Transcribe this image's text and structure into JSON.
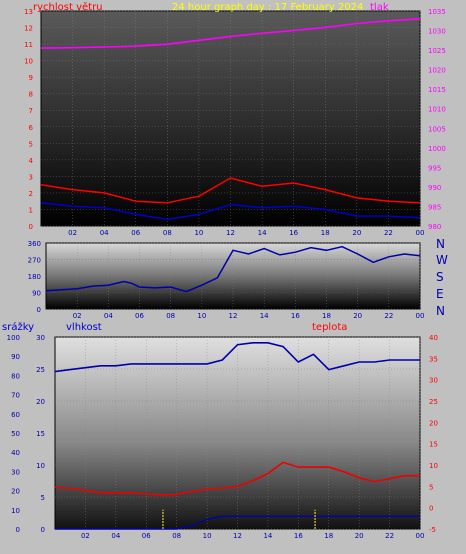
{
  "chart_data": [
    {
      "type": "line",
      "title": "24 hour graph day : 17 February 2024",
      "left_axis_label": "rychlost větru",
      "right_axis_label": "tlak",
      "left_ylim": [
        0,
        13
      ],
      "left_ticks": [
        "0",
        "1",
        "2",
        "3",
        "4",
        "5",
        "6",
        "7",
        "8",
        "9",
        "10",
        "11",
        "12",
        "13"
      ],
      "right_ylim": [
        980,
        1035
      ],
      "right_ticks": [
        "980",
        "985",
        "990",
        "995",
        "1000",
        "1005",
        "1010",
        "1015",
        "1020",
        "1025",
        "1030",
        "1035"
      ],
      "x_ticks": [
        "02",
        "04",
        "06",
        "08",
        "10",
        "12",
        "14",
        "16",
        "18",
        "20",
        "22",
        "00"
      ],
      "colors": {
        "title": "#ffff00",
        "left_label": "#ff0000",
        "right_label": "#ff00ff",
        "pressure": "#ff00ff",
        "gust": "#ff0000",
        "wind": "#0000cc"
      },
      "series": [
        {
          "role": "pressure",
          "x": [
            0,
            2,
            4,
            6,
            8,
            10,
            12,
            14,
            16,
            18,
            20,
            22,
            24
          ],
          "values": [
            1025.5,
            1025.6,
            1025.8,
            1026,
            1026.5,
            1027.5,
            1028.5,
            1029.3,
            1030,
            1030.8,
            1031.8,
            1032.5,
            1033
          ]
        },
        {
          "role": "gust",
          "x": [
            0,
            2,
            4,
            6,
            8,
            10,
            12,
            14,
            16,
            18,
            20,
            22,
            24
          ],
          "values": [
            2.5,
            2.2,
            2,
            1.5,
            1.4,
            1.8,
            2.9,
            2.4,
            2.6,
            2.2,
            1.7,
            1.5,
            1.4
          ]
        },
        {
          "role": "wind",
          "x": [
            0,
            2,
            4,
            6,
            8,
            10,
            12,
            14,
            16,
            18,
            20,
            22,
            24
          ],
          "values": [
            1.4,
            1.2,
            1.1,
            0.7,
            0.4,
            0.7,
            1.3,
            1.1,
            1.2,
            1.0,
            0.6,
            0.6,
            0.5
          ]
        }
      ]
    },
    {
      "type": "line",
      "right_letters": [
        "N",
        "W",
        "S",
        "E",
        "N"
      ],
      "left_ticks": [
        "0",
        "90",
        "180",
        "270",
        "360"
      ],
      "ylim": [
        0,
        360
      ],
      "x_ticks": [
        "02",
        "04",
        "06",
        "08",
        "10",
        "12",
        "14",
        "16",
        "18",
        "20",
        "22",
        "00"
      ],
      "colors": {
        "direction": "#0000aa"
      },
      "series": [
        {
          "role": "direction",
          "x": [
            0,
            1,
            2,
            3,
            4,
            5,
            5.5,
            6,
            7,
            8,
            9,
            10,
            11,
            12,
            13,
            14,
            15,
            16,
            17,
            18,
            19,
            20,
            21,
            22,
            23,
            24
          ],
          "values": [
            100,
            105,
            110,
            125,
            130,
            150,
            140,
            120,
            115,
            120,
            95,
            130,
            170,
            320,
            300,
            330,
            295,
            310,
            335,
            320,
            340,
            300,
            255,
            285,
            300,
            290
          ]
        }
      ]
    },
    {
      "type": "line",
      "labels": {
        "rain": "srážky",
        "humidity": "vlhkost",
        "temperature": "teplota"
      },
      "left_outer_ticks": [
        "0",
        "10",
        "20",
        "30",
        "40",
        "50",
        "60",
        "70",
        "80",
        "90",
        "100"
      ],
      "left_inner_ticks": [
        "0",
        "5",
        "10",
        "15",
        "20",
        "25",
        "30"
      ],
      "right_ticks": [
        "-5",
        "0",
        "5",
        "10",
        "15",
        "20",
        "25",
        "30",
        "35",
        "40"
      ],
      "humidity_ylim": [
        0,
        100
      ],
      "temperature_ylim": [
        -5,
        40
      ],
      "rain_ylim": [
        0,
        30
      ],
      "x_ticks": [
        "02",
        "04",
        "06",
        "08",
        "10",
        "12",
        "14",
        "16",
        "18",
        "20",
        "22",
        "00"
      ],
      "colors": {
        "rain_label": "#0000cc",
        "humidity_label": "#0000cc",
        "temperature_label": "#ff0000",
        "humidity": "#0000aa",
        "temperature": "#ee0000",
        "rain": "#0000aa",
        "rain_marker": "#ffff00"
      },
      "series": [
        {
          "role": "humidity",
          "x": [
            0,
            1,
            2,
            3,
            4,
            5,
            6,
            7,
            8,
            9,
            10,
            11,
            12,
            13,
            14,
            15,
            16,
            17,
            18,
            19,
            20,
            21,
            22,
            23,
            24
          ],
          "values": [
            82,
            83,
            84,
            85,
            85,
            86,
            86,
            86,
            86,
            86,
            86,
            88,
            96,
            97,
            97,
            95,
            87,
            91,
            83,
            85,
            87,
            87,
            88,
            88,
            88
          ]
        },
        {
          "role": "temperature",
          "x": [
            0,
            1,
            2,
            3,
            4,
            5,
            6,
            7,
            8,
            9,
            10,
            11,
            12,
            13,
            14,
            15,
            16,
            17,
            18,
            19,
            20,
            21,
            22,
            23,
            24
          ],
          "values": [
            4.8,
            4.5,
            4,
            3.5,
            3.4,
            3.5,
            3.2,
            3,
            3.1,
            3.8,
            4.3,
            4.6,
            5,
            6.3,
            8,
            10.6,
            9.5,
            9.5,
            9.5,
            8.4,
            7,
            6.1,
            6.8,
            7.5,
            7.5
          ]
        },
        {
          "role": "rain",
          "x": [
            0,
            1,
            2,
            3,
            4,
            5,
            6,
            7,
            8,
            9,
            10,
            11,
            12,
            13,
            14,
            15,
            16,
            17,
            18,
            19,
            20,
            21,
            22,
            23,
            24
          ],
          "values": [
            0,
            0,
            0,
            0,
            0,
            0,
            0,
            0,
            0,
            0.5,
            1.5,
            2,
            2,
            2,
            2,
            2,
            2,
            2,
            2,
            2,
            2,
            2,
            2,
            2,
            2
          ]
        },
        {
          "role": "rain_marker",
          "x": [
            7.1,
            17.1
          ],
          "values": [
            3,
            3
          ]
        }
      ]
    }
  ]
}
